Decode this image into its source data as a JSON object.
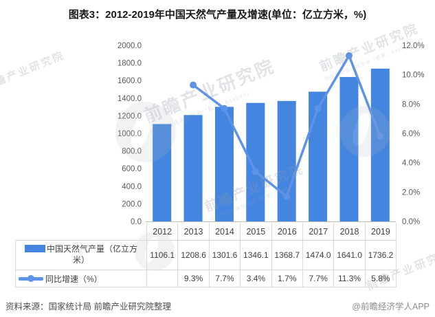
{
  "title": "图表3：2012-2019年中国天然气产量及增速(单位：亿立方米，%)",
  "chart_data": {
    "type": "bar",
    "categories": [
      "2012",
      "2013",
      "2014",
      "2015",
      "2016",
      "2017",
      "2018",
      "2019"
    ],
    "series": [
      {
        "name": "中国天然气产量（亿立方米）",
        "type": "bar",
        "axis": "left",
        "color": "#4486df",
        "values": [
          1106.1,
          1208.6,
          1301.6,
          1346.1,
          1368.7,
          1474.0,
          1641.0,
          1736.2
        ]
      },
      {
        "name": "同比增速（%）",
        "type": "line",
        "axis": "right",
        "color": "#5c93e6",
        "values": [
          null,
          9.3,
          7.7,
          3.4,
          1.7,
          7.7,
          11.3,
          5.8
        ]
      }
    ],
    "left_axis": {
      "min": 0,
      "max": 2000,
      "ticks": [
        "2000.0",
        "1800.0",
        "1600.0",
        "1400.0",
        "1200.0",
        "1000.0",
        "800.0",
        "600.0",
        "400.0",
        "200.0",
        "0.0"
      ]
    },
    "right_axis": {
      "min": 0,
      "max": 12,
      "ticks": [
        "12.0%",
        "10.0%",
        "8.0%",
        "6.0%",
        "4.0%",
        "2.0%",
        "0.0%"
      ]
    },
    "grid": false,
    "legend_position": "table-left"
  },
  "table": {
    "years": [
      "2012",
      "2013",
      "2014",
      "2015",
      "2016",
      "2017",
      "2018",
      "2019"
    ],
    "rows": [
      {
        "label": "中国天然气产量（亿立方米）",
        "values": [
          "1106.1",
          "1208.6",
          "1301.6",
          "1346.1",
          "1368.7",
          "1474.0",
          "1641.0",
          "1736.2"
        ]
      },
      {
        "label": "同比增速（%）",
        "values": [
          "",
          "9.3%",
          "7.7%",
          "3.4%",
          "1.7%",
          "7.7%",
          "11.3%",
          "5.8%"
        ]
      }
    ]
  },
  "footer": {
    "source": "资料来源：国家统计局 前瞻产业研究院整理",
    "credit": "@前瞻经济学人APP"
  },
  "watermark": {
    "brand": "前瞻产业研究院",
    "tagline": "中国产业咨询领导者（股票：839599）"
  },
  "colors": {
    "bar": "#4486df",
    "line": "#5c93e6",
    "axis_text": "#595959",
    "axis_line": "#bfbfbf",
    "table_border": "#d9d9d9",
    "table_text": "#404040",
    "title_text": "#1a1a1a"
  }
}
